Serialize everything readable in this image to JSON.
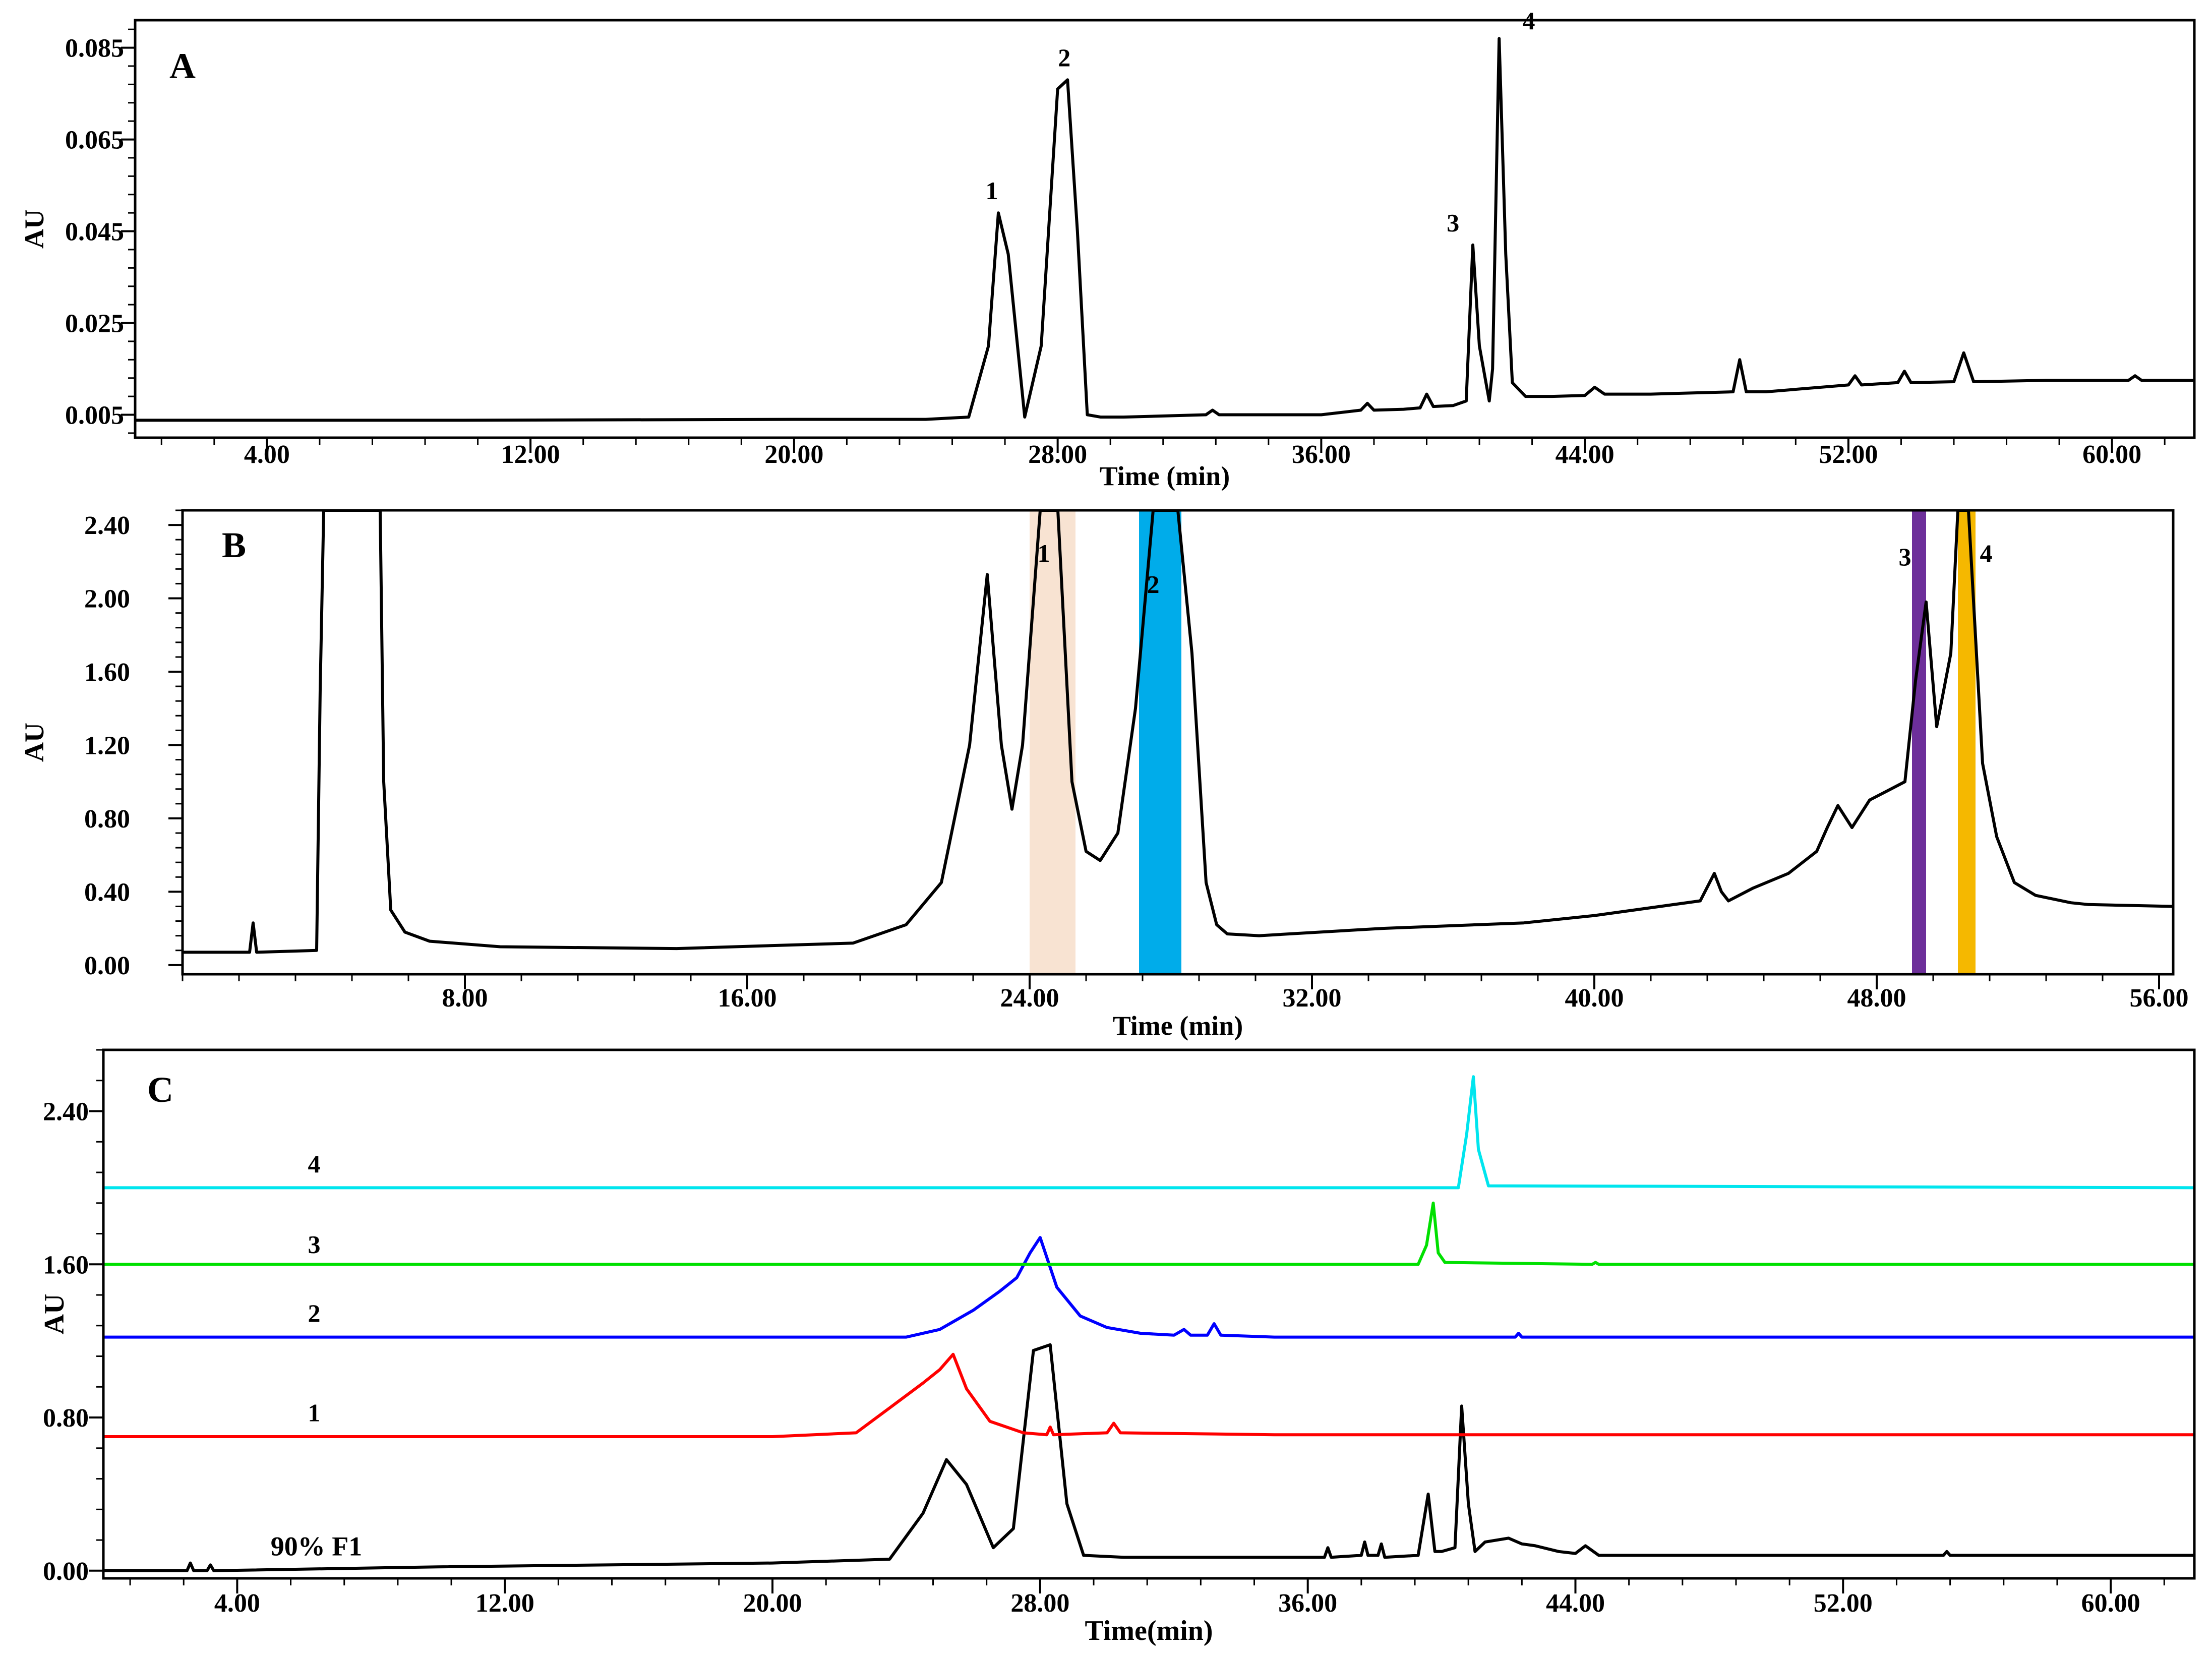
{
  "chart_data": [
    {
      "panel": "A",
      "type": "line",
      "xlabel": "Time (min)",
      "ylabel": "AU",
      "xlim": [
        0,
        62.5
      ],
      "ylim": [
        0.0,
        0.091
      ],
      "xticks": [
        4,
        12,
        20,
        28,
        36,
        44,
        52,
        60
      ],
      "xtick_labels": [
        "4.00",
        "12.00",
        "20.00",
        "28.00",
        "36.00",
        "44.00",
        "52.00",
        "60.00"
      ],
      "yticks": [
        0.005,
        0.025,
        0.045,
        0.065,
        0.085
      ],
      "ytick_labels": [
        "0.005",
        "0.025",
        "0.045",
        "0.065",
        "0.085"
      ],
      "series": [
        {
          "color": "#000000",
          "x": [
            0,
            10,
            20,
            24,
            25.3,
            25.9,
            26.2,
            26.5,
            27.0,
            27.5,
            28.0,
            28.3,
            28.6,
            28.9,
            29.3,
            30,
            32.5,
            32.7,
            32.9,
            36,
            37.2,
            37.4,
            37.6,
            38.5,
            39.0,
            39.2,
            39.4,
            40.0,
            40.4,
            40.6,
            40.8,
            41.1,
            41.2,
            41.4,
            41.6,
            41.8,
            42.2,
            43,
            44,
            44.3,
            44.6,
            46,
            48.5,
            48.7,
            48.9,
            49.5,
            52,
            52.2,
            52.4,
            53.5,
            53.7,
            53.9,
            55.2,
            55.5,
            55.8,
            58,
            60.5,
            60.7,
            60.9,
            62.5
          ],
          "y": [
            0.0038,
            0.0038,
            0.004,
            0.004,
            0.0045,
            0.02,
            0.049,
            0.04,
            0.0045,
            0.02,
            0.076,
            0.078,
            0.045,
            0.005,
            0.0045,
            0.0045,
            0.005,
            0.006,
            0.005,
            0.005,
            0.006,
            0.0075,
            0.006,
            0.0062,
            0.0065,
            0.0095,
            0.0068,
            0.007,
            0.008,
            0.042,
            0.02,
            0.008,
            0.015,
            0.087,
            0.04,
            0.012,
            0.009,
            0.009,
            0.0092,
            0.011,
            0.0095,
            0.0095,
            0.01,
            0.017,
            0.01,
            0.01,
            0.0115,
            0.0135,
            0.0115,
            0.012,
            0.0145,
            0.012,
            0.0122,
            0.0185,
            0.0122,
            0.0125,
            0.0125,
            0.0135,
            0.0125,
            0.0125
          ]
        }
      ],
      "annotations": [
        {
          "text": "1",
          "x": 26.0,
          "y": 0.052
        },
        {
          "text": "2",
          "x": 28.2,
          "y": 0.081
        },
        {
          "text": "3",
          "x": 40.0,
          "y": 0.045
        },
        {
          "text": "4",
          "x": 42.3,
          "y": 0.089
        }
      ]
    },
    {
      "panel": "B",
      "type": "line",
      "xlabel": "Time  (min)",
      "ylabel": "AU",
      "xlim": [
        0,
        56.4
      ],
      "ylim": [
        -0.05,
        2.48
      ],
      "xticks": [
        8,
        16,
        24,
        32,
        40,
        48,
        56
      ],
      "xtick_labels": [
        "8.00",
        "16.00",
        "24.00",
        "32.00",
        "40.00",
        "48.00",
        "56.00"
      ],
      "yticks": [
        0.0,
        0.4,
        0.8,
        1.2,
        1.6,
        2.0,
        2.4
      ],
      "ytick_labels": [
        "0.00",
        "0.40",
        "0.80",
        "1.20",
        "1.60",
        "2.00",
        "2.40"
      ],
      "highlights": [
        {
          "x_from": 24.0,
          "x_to": 25.3,
          "color": "#f8e3d2"
        },
        {
          "x_from": 27.1,
          "x_to": 28.3,
          "color": "#00acea"
        },
        {
          "x_from": 49.0,
          "x_to": 49.4,
          "color": "#6d2f9a"
        },
        {
          "x_from": 50.3,
          "x_to": 50.8,
          "color": "#f5b800"
        }
      ],
      "series": [
        {
          "color": "#000000",
          "x": [
            0,
            1.9,
            2.0,
            2.1,
            3.8,
            3.9,
            4.0,
            5.6,
            5.7,
            5.9,
            6.3,
            7,
            9,
            14,
            19,
            20.5,
            21.5,
            22.3,
            22.8,
            23.2,
            23.5,
            23.8,
            24.3,
            24.8,
            25.2,
            25.6,
            26.0,
            26.5,
            27.0,
            27.5,
            27.8,
            28.2,
            28.6,
            29.0,
            29.3,
            29.6,
            30.5,
            34,
            38,
            40,
            43,
            43.4,
            43.6,
            43.8,
            44.5,
            45.5,
            46.3,
            46.6,
            46.9,
            47.3,
            47.8,
            48.3,
            48.8,
            49.1,
            49.4,
            49.7,
            50.1,
            50.3,
            50.6,
            51.0,
            51.4,
            51.9,
            52.5,
            53.5,
            54,
            56.4
          ],
          "y": [
            0.07,
            0.07,
            0.23,
            0.07,
            0.08,
            1.5,
            2.48,
            2.48,
            1.0,
            0.3,
            0.18,
            0.13,
            0.1,
            0.09,
            0.12,
            0.22,
            0.45,
            1.2,
            2.13,
            1.2,
            0.85,
            1.2,
            2.48,
            2.48,
            1.0,
            0.62,
            0.57,
            0.72,
            1.4,
            2.48,
            2.48,
            2.48,
            1.7,
            0.45,
            0.22,
            0.17,
            0.16,
            0.2,
            0.23,
            0.27,
            0.35,
            0.5,
            0.4,
            0.35,
            0.42,
            0.5,
            0.62,
            0.75,
            0.87,
            0.75,
            0.9,
            0.95,
            1.0,
            1.55,
            1.98,
            1.3,
            1.7,
            2.48,
            2.48,
            1.1,
            0.7,
            0.45,
            0.38,
            0.34,
            0.33,
            0.32
          ]
        }
      ],
      "annotations": [
        {
          "text": "1",
          "x": 24.4,
          "y": 2.2
        },
        {
          "text": "2",
          "x": 27.5,
          "y": 2.03
        },
        {
          "text": "3",
          "x": 48.8,
          "y": 2.18
        },
        {
          "text": "4",
          "x": 51.1,
          "y": 2.2
        }
      ]
    },
    {
      "panel": "C",
      "type": "line",
      "xlabel": "Time(min)",
      "ylabel": "AU",
      "xlim": [
        0,
        62.5
      ],
      "ylim": [
        -0.04,
        2.72
      ],
      "xticks": [
        4,
        12,
        20,
        28,
        36,
        44,
        52,
        60
      ],
      "xtick_labels": [
        "4.00",
        "12.00",
        "20.00",
        "28.00",
        "36.00",
        "44.00",
        "52.00",
        "60.00"
      ],
      "yticks": [
        0.0,
        0.8,
        1.6,
        2.4
      ],
      "ytick_labels": [
        "0.00",
        "0.80",
        "1.60",
        "2.40"
      ],
      "series": [
        {
          "name": "90% F1",
          "color": "#000000",
          "x": [
            0,
            2.5,
            2.6,
            2.7,
            3.1,
            3.2,
            3.3,
            10,
            20,
            23.5,
            24.5,
            25.2,
            25.8,
            26.6,
            27.2,
            27.8,
            28.3,
            28.8,
            29.3,
            30.5,
            36.5,
            36.6,
            36.7,
            37.6,
            37.7,
            37.8,
            38.1,
            38.2,
            38.3,
            39.3,
            39.6,
            39.8,
            40.0,
            40.4,
            40.6,
            40.8,
            41.0,
            41.3,
            42.0,
            42.4,
            42.8,
            43.5,
            44.0,
            44.3,
            44.7,
            46,
            55,
            55.1,
            55.2,
            62.5
          ],
          "y": [
            0.0,
            0.0,
            0.04,
            0.0,
            0.0,
            0.03,
            0.0,
            0.02,
            0.04,
            0.06,
            0.3,
            0.58,
            0.45,
            0.12,
            0.22,
            1.15,
            1.18,
            0.35,
            0.08,
            0.07,
            0.07,
            0.12,
            0.07,
            0.08,
            0.15,
            0.08,
            0.08,
            0.14,
            0.07,
            0.08,
            0.4,
            0.1,
            0.1,
            0.12,
            0.86,
            0.35,
            0.1,
            0.15,
            0.17,
            0.14,
            0.13,
            0.1,
            0.09,
            0.13,
            0.08,
            0.08,
            0.08,
            0.1,
            0.08,
            0.08
          ]
        },
        {
          "name": "1",
          "color": "#ff0000",
          "x": [
            0,
            20,
            22.5,
            23.5,
            24.5,
            25.0,
            25.4,
            25.8,
            26.5,
            27.5,
            28.2,
            28.3,
            28.4,
            30.0,
            30.2,
            30.4,
            35,
            62.5
          ],
          "y": [
            0.7,
            0.7,
            0.72,
            0.85,
            0.98,
            1.05,
            1.13,
            0.95,
            0.78,
            0.72,
            0.71,
            0.75,
            0.71,
            0.72,
            0.77,
            0.72,
            0.71,
            0.71
          ],
          "annotation": {
            "text": "1",
            "x": 6.3,
            "y": 0.78
          }
        },
        {
          "name": "2",
          "color": "#0000ff",
          "x": [
            0,
            24,
            25,
            26,
            26.8,
            27.3,
            27.7,
            28.0,
            28.5,
            29.2,
            30.0,
            31,
            32,
            32.3,
            32.5,
            33.0,
            33.2,
            33.4,
            35,
            42.2,
            42.3,
            42.4,
            62.5
          ],
          "y": [
            1.22,
            1.22,
            1.26,
            1.36,
            1.46,
            1.53,
            1.66,
            1.74,
            1.48,
            1.33,
            1.27,
            1.24,
            1.23,
            1.26,
            1.23,
            1.23,
            1.29,
            1.23,
            1.22,
            1.22,
            1.24,
            1.22,
            1.22
          ],
          "annotation": {
            "text": "2",
            "x": 6.3,
            "y": 1.3
          }
        },
        {
          "name": "3",
          "color": "#00e000",
          "x": [
            0,
            39.3,
            39.55,
            39.75,
            39.9,
            40.1,
            44.5,
            44.6,
            44.7,
            62.5
          ],
          "y": [
            1.6,
            1.6,
            1.7,
            1.92,
            1.66,
            1.61,
            1.6,
            1.61,
            1.6,
            1.6
          ],
          "annotation": {
            "text": "3",
            "x": 6.3,
            "y": 1.66
          }
        },
        {
          "name": "4",
          "color": "#00e5ee",
          "x": [
            0,
            40.5,
            40.75,
            40.95,
            41.1,
            41.4,
            62.5
          ],
          "y": [
            2.0,
            2.0,
            2.28,
            2.58,
            2.2,
            2.01,
            2.0
          ],
          "annotation": {
            "text": "4",
            "x": 6.3,
            "y": 2.08
          }
        }
      ]
    }
  ],
  "panel_labels": [
    "A",
    "B",
    "C"
  ]
}
